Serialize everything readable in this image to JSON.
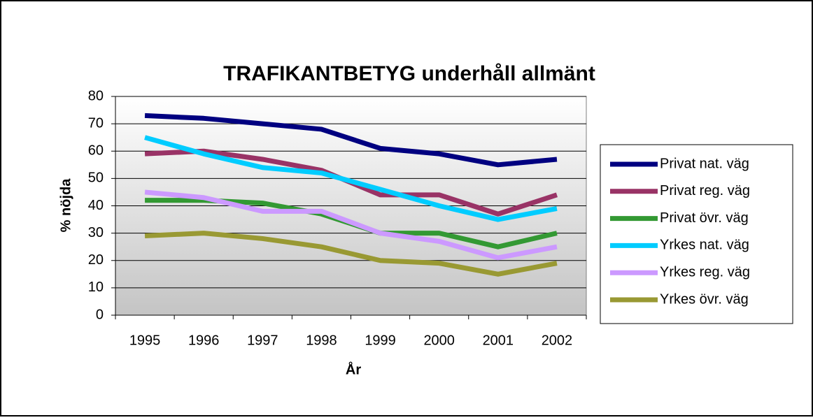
{
  "chart_data": {
    "type": "line",
    "title": "TRAFIKANTBETYG underhåll allmänt",
    "x_label": "År",
    "y_label": "% nöjda",
    "categories": [
      "1995",
      "1996",
      "1997",
      "1998",
      "1999",
      "2000",
      "2001",
      "2002"
    ],
    "series": [
      {
        "name": "Privat nat. väg",
        "color": "#000080",
        "values": [
          73,
          72,
          70,
          68,
          61,
          59,
          55,
          57
        ]
      },
      {
        "name": "Privat reg. väg",
        "color": "#993366",
        "values": [
          59,
          60,
          57,
          53,
          44,
          44,
          37,
          44
        ]
      },
      {
        "name": "Privat övr. väg",
        "color": "#339933",
        "values": [
          42,
          42,
          41,
          37,
          30,
          30,
          25,
          30
        ]
      },
      {
        "name": "Yrkes nat. väg",
        "color": "#00ccff",
        "values": [
          65,
          59,
          54,
          52,
          46,
          40,
          35,
          39
        ]
      },
      {
        "name": "Yrkes reg. väg",
        "color": "#cc99ff",
        "values": [
          45,
          43,
          38,
          38,
          30,
          27,
          21,
          25
        ]
      },
      {
        "name": "Yrkes övr. väg",
        "color": "#999933",
        "values": [
          29,
          30,
          28,
          25,
          20,
          19,
          15,
          19
        ]
      }
    ],
    "ylim": [
      0,
      80
    ],
    "yticks": [
      0,
      10,
      20,
      30,
      40,
      50,
      60,
      70,
      80
    ],
    "grid": true,
    "legend": "right"
  }
}
